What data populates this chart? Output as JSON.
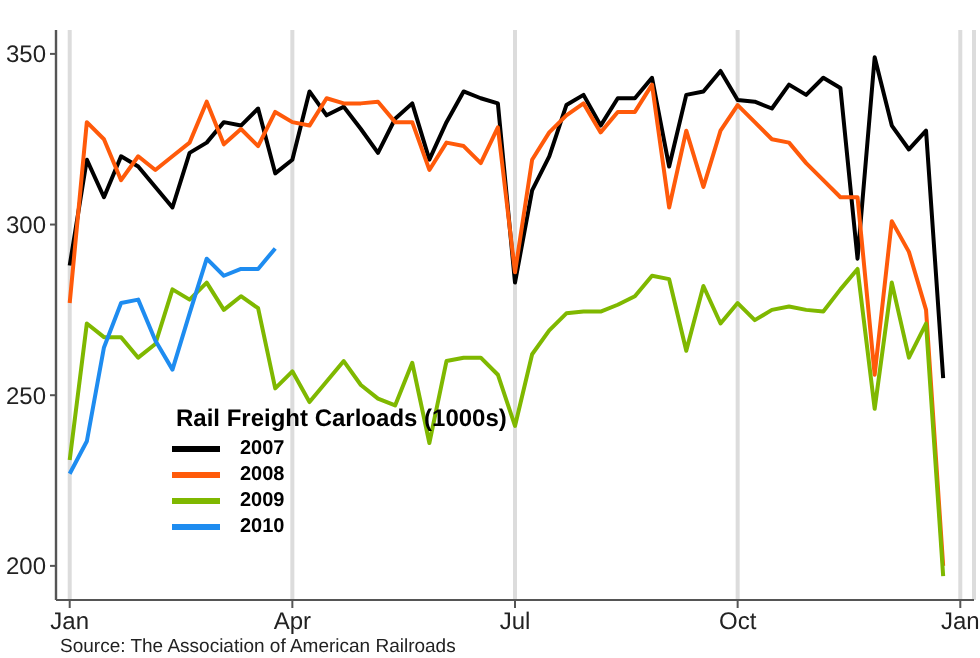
{
  "chart_data": {
    "type": "line",
    "legend_title": "Rail Freight Carloads (1000s)",
    "annotations": [
      "Source: The Association of American Railroads"
    ],
    "categories": [
      "Jan",
      null,
      null,
      null,
      null,
      null,
      null,
      null,
      null,
      null,
      null,
      null,
      null,
      "Apr",
      null,
      null,
      null,
      null,
      null,
      null,
      null,
      null,
      null,
      null,
      null,
      null,
      "Jul",
      null,
      null,
      null,
      null,
      null,
      null,
      null,
      null,
      null,
      null,
      null,
      null,
      "Oct",
      null,
      null,
      null,
      null,
      null,
      null,
      null,
      null,
      null,
      null,
      null,
      null,
      "Jan"
    ],
    "ylim": [
      190,
      357
    ],
    "yticks": [
      200,
      250,
      300,
      350
    ],
    "grid": "x",
    "legend": "bottom left",
    "marker": "none",
    "line_style": "solid",
    "series": [
      {
        "name": "2007",
        "color": "#000000",
        "values": [
          288,
          319,
          308,
          320,
          317,
          311,
          305,
          321,
          324,
          330,
          329,
          334,
          315,
          319,
          339,
          332,
          334.5,
          328,
          321,
          331,
          335.5,
          319,
          330,
          339,
          337,
          335.5,
          283,
          310,
          320,
          335,
          338,
          329,
          337,
          337,
          343,
          317,
          338,
          339,
          345,
          336.5,
          336,
          334,
          341,
          338,
          343,
          340,
          290,
          349,
          329,
          322,
          327.5,
          255,
          null
        ]
      },
      {
        "name": "2008",
        "color": "#ff5a0a",
        "values": [
          277,
          330,
          325,
          313,
          320,
          316,
          320,
          324,
          336,
          323.5,
          328,
          323,
          333,
          330,
          329,
          337,
          335.5,
          335.5,
          336,
          330,
          330,
          316,
          324,
          323,
          318,
          328.5,
          286,
          319,
          327,
          332,
          335.5,
          327,
          333,
          333,
          341,
          305,
          327.5,
          311,
          327.5,
          335,
          330,
          325,
          324,
          318,
          313,
          308,
          308,
          256,
          301,
          292,
          275,
          200,
          null
        ]
      },
      {
        "name": "2009",
        "color": "#7fb800",
        "values": [
          231,
          271,
          267,
          267,
          261,
          265,
          281,
          278,
          283,
          275,
          279,
          275.5,
          252,
          257,
          248,
          254,
          260,
          253,
          249,
          247,
          259.5,
          236,
          260,
          261,
          261,
          256,
          241,
          262,
          269,
          274,
          274.5,
          274.5,
          276.5,
          279,
          285,
          284,
          263,
          282,
          271,
          277,
          272,
          275,
          276,
          275,
          274.5,
          281,
          287,
          246,
          283,
          261,
          271,
          197,
          null
        ]
      },
      {
        "name": "2010",
        "color": "#1e8cf0",
        "values": [
          227,
          236.5,
          264,
          277,
          278,
          266,
          257.5,
          274,
          290,
          285,
          287,
          287,
          293,
          null,
          null,
          null,
          null,
          null,
          null,
          null,
          null,
          null,
          null,
          null,
          null,
          null,
          null,
          null,
          null,
          null,
          null,
          null,
          null,
          null,
          null,
          null,
          null,
          null,
          null,
          null,
          null,
          null,
          null,
          null,
          null,
          null,
          null,
          null,
          null,
          null,
          null,
          null,
          null
        ]
      }
    ]
  }
}
